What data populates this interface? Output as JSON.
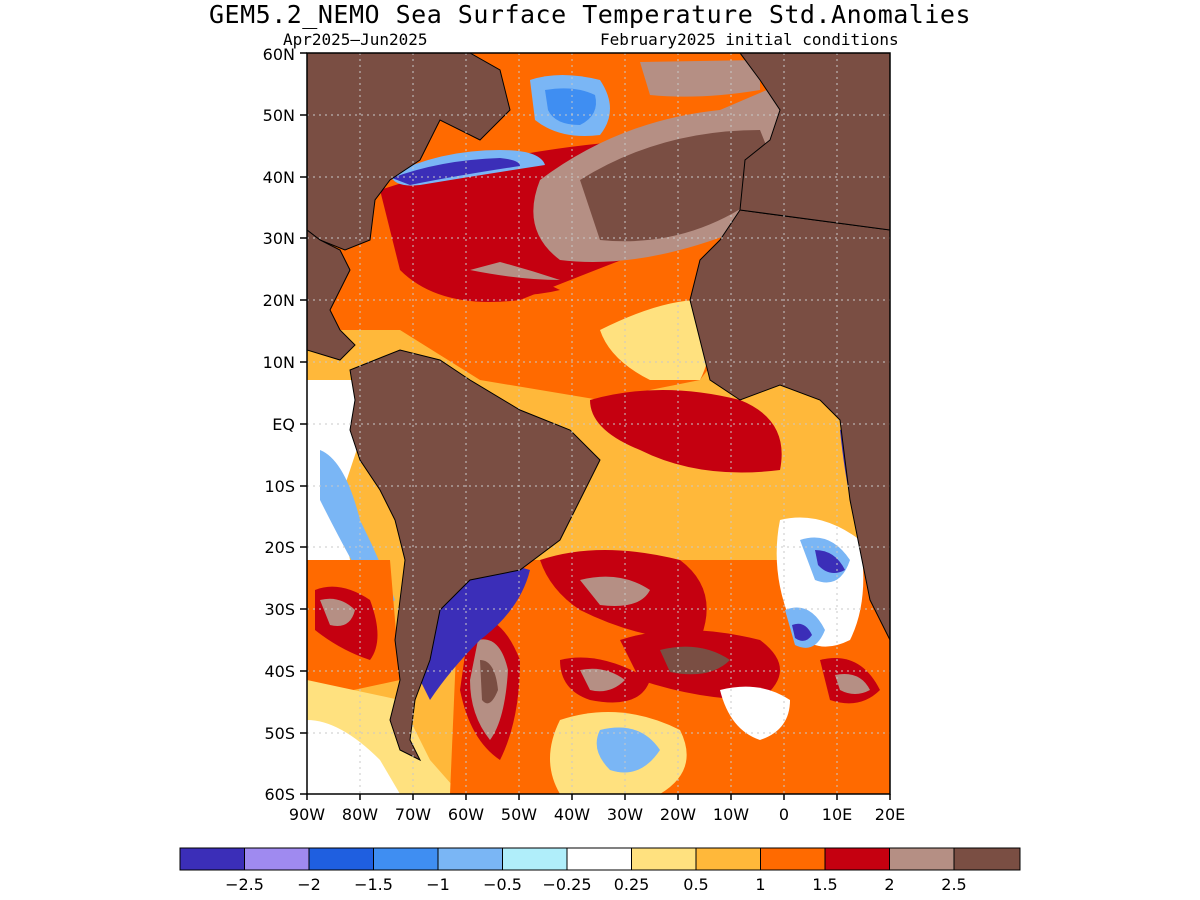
{
  "title": "GEM5.2_NEMO Sea Surface Temperature Std.Anomalies",
  "subtitle_left": "Apr2025–Jun2025",
  "subtitle_right": "February2025 initial conditions",
  "map": {
    "lat_range": [
      -60,
      60
    ],
    "lon_range": [
      -90,
      20
    ],
    "lat_ticks": [
      "60N",
      "50N",
      "40N",
      "30N",
      "20N",
      "10N",
      "EQ",
      "10S",
      "20S",
      "30S",
      "40S",
      "50S",
      "60S"
    ],
    "lon_ticks": [
      "90W",
      "80W",
      "70W",
      "60W",
      "50W",
      "40W",
      "30W",
      "20W",
      "10W",
      "0",
      "10E",
      "20E"
    ],
    "grid": "dotted",
    "land_color": "#7a4e43"
  },
  "colorbar": {
    "colors": [
      "#3b2eb8",
      "#9f8af0",
      "#1f5fe0",
      "#3f8ef2",
      "#7ab6f5",
      "#b0eefa",
      "#ffffff",
      "#ffe17f",
      "#ffb83a",
      "#ff6a00",
      "#c50010",
      "#b58f84",
      "#7a4e43"
    ],
    "labels": [
      "−2.5",
      "−2",
      "−1.5",
      "−1",
      "−0.5",
      "−0.25",
      "0.25",
      "0.5",
      "1",
      "1.5",
      "2",
      "2.5"
    ]
  }
}
